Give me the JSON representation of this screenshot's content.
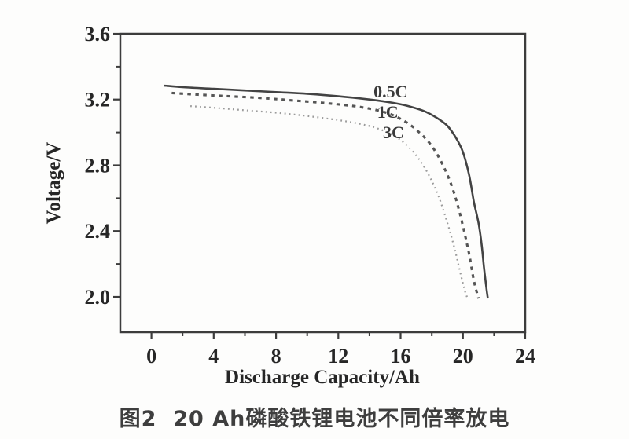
{
  "figure": {
    "caption": "图2  20 Ah磷酸铁锂电池不同倍率放电"
  },
  "chart_data": {
    "type": "line",
    "title": "",
    "xlabel": "Discharge Capacity/Ah",
    "ylabel": "Voltage/V",
    "xlim": [
      -2,
      24
    ],
    "ylim": [
      1.785,
      3.6
    ],
    "x_ticks_major": [
      0,
      4,
      8,
      12,
      16,
      20,
      24
    ],
    "x_ticks_minor": [
      2,
      6,
      10,
      14,
      18,
      22
    ],
    "y_ticks_major": [
      2.0,
      2.4,
      2.8,
      3.2,
      3.6
    ],
    "y_ticks_minor": [
      2.2,
      2.6,
      3.0,
      3.4
    ],
    "grid": false,
    "legend_position": "inline-labels",
    "colors": {
      "axis": "#3c3c3c",
      "tick_text": "#262626",
      "solid": "#434343",
      "dashed": "#555555",
      "dotted": "#9b9b9b",
      "label_text": "#3a3a3a"
    },
    "series": [
      {
        "name": "0.5C",
        "style": "solid",
        "label_at": [
          14.26,
          3.213
        ],
        "points": [
          [
            0.8,
            3.285
          ],
          [
            2,
            3.275
          ],
          [
            4,
            3.265
          ],
          [
            6,
            3.255
          ],
          [
            8,
            3.245
          ],
          [
            10,
            3.235
          ],
          [
            12,
            3.22
          ],
          [
            14,
            3.2
          ],
          [
            15.5,
            3.18
          ],
          [
            16.5,
            3.16
          ],
          [
            17.5,
            3.13
          ],
          [
            18.3,
            3.09
          ],
          [
            19.0,
            3.04
          ],
          [
            19.6,
            2.96
          ],
          [
            20.0,
            2.88
          ],
          [
            20.4,
            2.74
          ],
          [
            20.7,
            2.58
          ],
          [
            21.0,
            2.45
          ],
          [
            21.2,
            2.32
          ],
          [
            21.35,
            2.18
          ],
          [
            21.5,
            2.06
          ],
          [
            21.6,
            1.99
          ]
        ]
      },
      {
        "name": "1C",
        "style": "dashed",
        "label_at": [
          14.5,
          3.089
        ],
        "points": [
          [
            1.3,
            3.24
          ],
          [
            3,
            3.23
          ],
          [
            5,
            3.22
          ],
          [
            7,
            3.21
          ],
          [
            9,
            3.195
          ],
          [
            11,
            3.18
          ],
          [
            13,
            3.16
          ],
          [
            14.5,
            3.135
          ],
          [
            15.5,
            3.105
          ],
          [
            16.4,
            3.06
          ],
          [
            17.2,
            3.0
          ],
          [
            17.9,
            2.93
          ],
          [
            18.5,
            2.84
          ],
          [
            19.1,
            2.72
          ],
          [
            19.6,
            2.58
          ],
          [
            20.0,
            2.43
          ],
          [
            20.4,
            2.26
          ],
          [
            20.7,
            2.1
          ],
          [
            21.0,
            1.99
          ]
        ]
      },
      {
        "name": "3C",
        "style": "dotted",
        "label_at": [
          14.86,
          2.965
        ],
        "points": [
          [
            2.5,
            3.16
          ],
          [
            4,
            3.15
          ],
          [
            6,
            3.135
          ],
          [
            8,
            3.12
          ],
          [
            10,
            3.1
          ],
          [
            12,
            3.075
          ],
          [
            13.5,
            3.05
          ],
          [
            14.5,
            3.025
          ],
          [
            15.5,
            2.985
          ],
          [
            16.3,
            2.93
          ],
          [
            17.0,
            2.86
          ],
          [
            17.7,
            2.76
          ],
          [
            18.4,
            2.62
          ],
          [
            19.0,
            2.45
          ],
          [
            19.5,
            2.28
          ],
          [
            19.9,
            2.12
          ],
          [
            20.15,
            2.03
          ],
          [
            20.3,
            1.99
          ]
        ]
      }
    ]
  }
}
